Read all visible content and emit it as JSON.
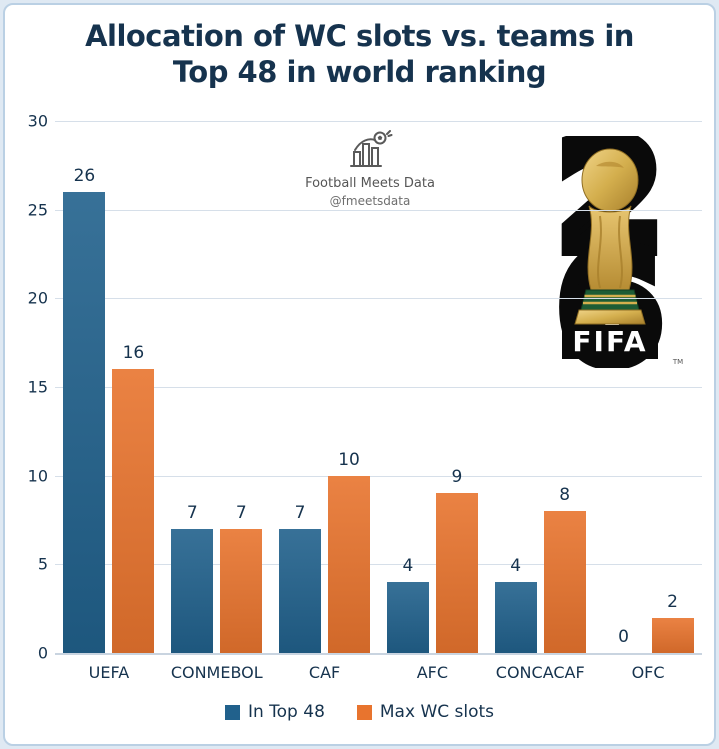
{
  "title": {
    "line1": "Allocation of WC slots vs. teams in",
    "line2": "Top 48 in world ranking"
  },
  "watermark": {
    "name": "Football Meets Data",
    "handle": "@fmeetsdata"
  },
  "logo": {
    "digit_top": "2",
    "digit_bottom": "6",
    "brand": "FIFA",
    "trademark": "TM"
  },
  "chart_data": {
    "type": "bar",
    "title": "Allocation of WC slots vs. teams in Top 48 in world ranking",
    "categories": [
      "UEFA",
      "CONMEBOL",
      "CAF",
      "AFC",
      "CONCACAF",
      "OFC"
    ],
    "series": [
      {
        "name": "In Top 48",
        "color": "#21618C",
        "values": [
          26,
          7,
          7,
          4,
          4,
          0
        ]
      },
      {
        "name": "Max WC slots",
        "color": "#E8742E",
        "values": [
          16,
          7,
          10,
          9,
          8,
          2
        ]
      }
    ],
    "xlabel": "",
    "ylabel": "",
    "ylim": [
      0,
      30
    ],
    "ytick_step": 5,
    "grid": true,
    "legend_position": "bottom"
  },
  "colors": {
    "title_text": "#16334E",
    "gridline": "#D6DFE9",
    "axis_line": "#C9D4E0",
    "card_background": "#FFFFFF",
    "page_background": "#DFE9F3",
    "card_border": "#BAD0E4",
    "watermark_text": "#5F5F5F",
    "logo_black": "#0A0A0A",
    "trophy_gold": "#D4AF4E",
    "trophy_green": "#1D5C35"
  }
}
